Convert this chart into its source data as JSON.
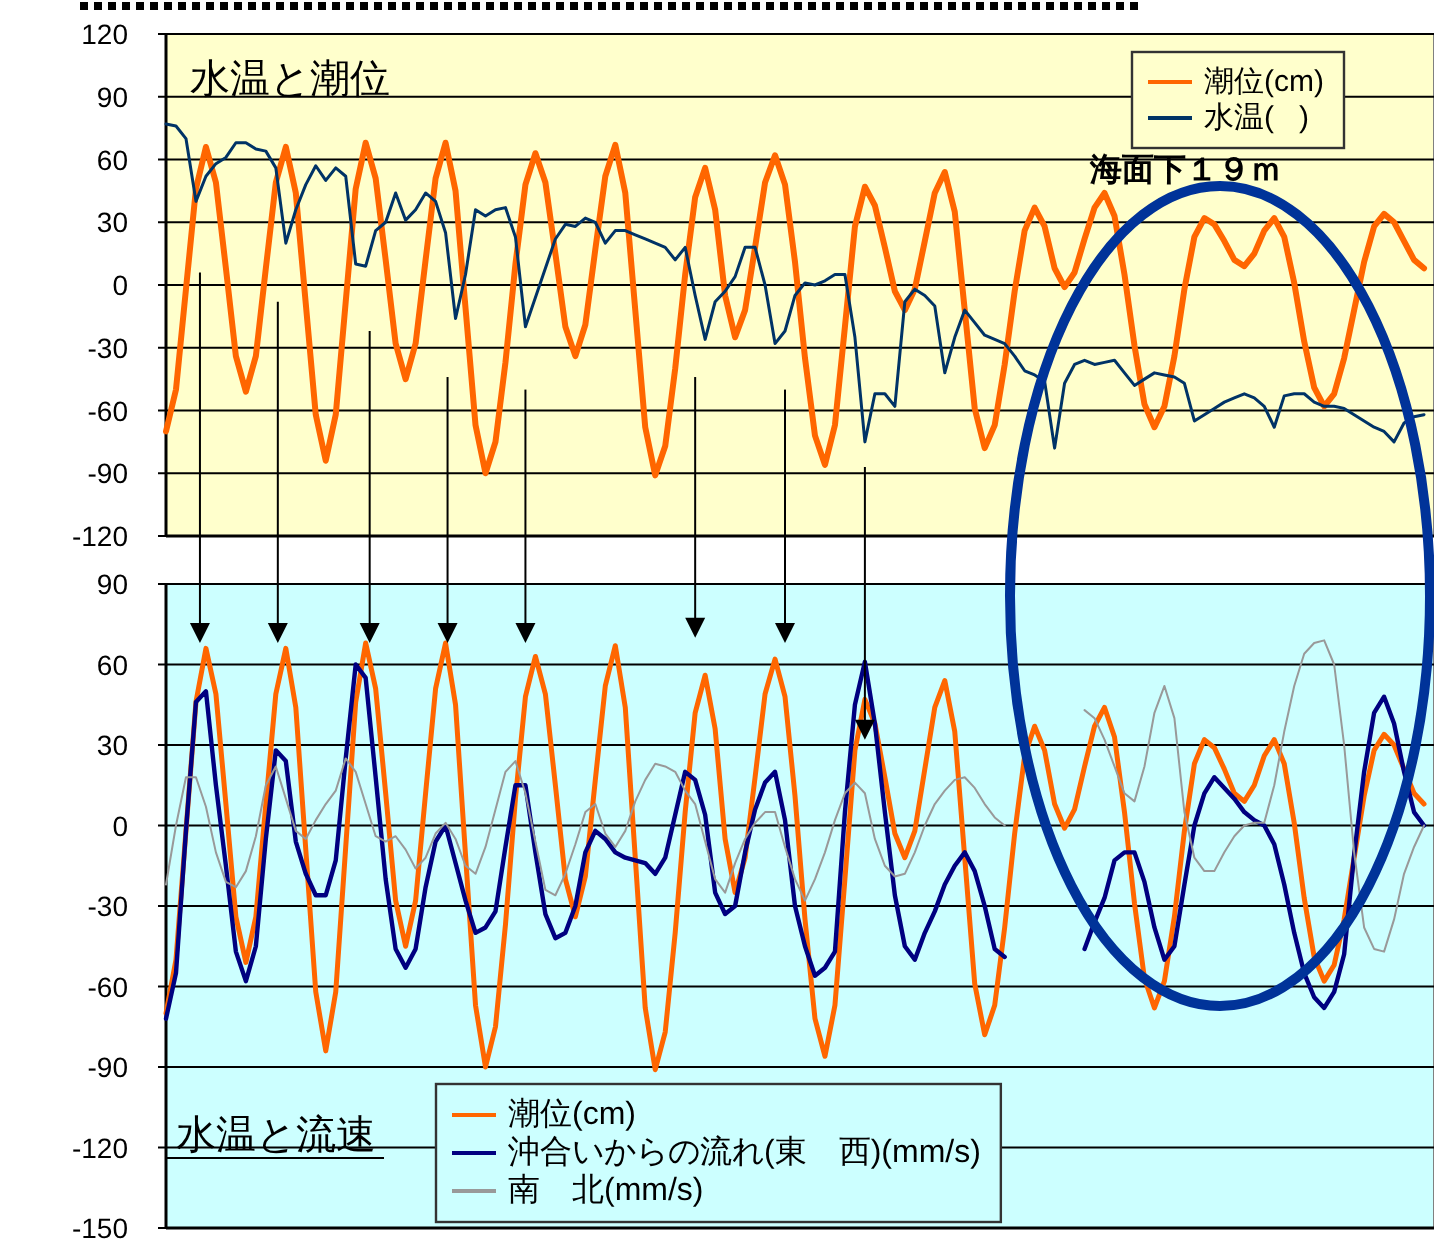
{
  "chart_data": [
    {
      "type": "line",
      "title": "水温と潮位",
      "categories": [
        null,
        null,
        null,
        null,
        null,
        null,
        null,
        null,
        null,
        null,
        null,
        null,
        null,
        null,
        null,
        null,
        null,
        null,
        null,
        null,
        null,
        null,
        null,
        null,
        null,
        null,
        null,
        null,
        null,
        null,
        null,
        null,
        null,
        null,
        null,
        null,
        null,
        null,
        null,
        null,
        null,
        null,
        null,
        null,
        null,
        null,
        null,
        null,
        null,
        null,
        null,
        null,
        null,
        null,
        null,
        null,
        null,
        null,
        null,
        null,
        null,
        null,
        null,
        null,
        null,
        null,
        null,
        null,
        null,
        null,
        null,
        null,
        null,
        null,
        null,
        null,
        null,
        null,
        null,
        null,
        null,
        null,
        null,
        null,
        null,
        null,
        null,
        null,
        null,
        null,
        null,
        null,
        null,
        null,
        null,
        null,
        null,
        null,
        null,
        null,
        null,
        null,
        null,
        null,
        null,
        null,
        null,
        null,
        null,
        null,
        null,
        null,
        null,
        null,
        null,
        null,
        null,
        null,
        null,
        null,
        null,
        null,
        null,
        null,
        null,
        null,
        null
      ],
      "ylim": [
        -120,
        120
      ],
      "yticks": [
        -120,
        -90,
        -60,
        -30,
        0,
        30,
        60,
        90,
        120
      ],
      "grid": "y",
      "legend": "top right",
      "tick_labels": "y",
      "series": [
        {
          "name": "潮位(cm)",
          "color": "#ff6600",
          "values": [
            -70,
            -50,
            -2,
            46,
            66,
            49,
            8,
            -34,
            -51,
            -34,
            8,
            49,
            66,
            44,
            -9,
            -62,
            -84,
            -62,
            -8,
            46,
            68,
            51,
            12,
            -28,
            -45,
            -28,
            12,
            51,
            68,
            45,
            -11,
            -67,
            -90,
            -75,
            -37,
            10,
            48,
            63,
            49,
            15,
            -20,
            -34,
            -19,
            17,
            52,
            67,
            44,
            -12,
            -68,
            -91,
            -77,
            -40,
            5,
            42,
            56,
            36,
            -5,
            -25,
            -12,
            18,
            49,
            62,
            48,
            11,
            -35,
            -72,
            -86,
            -67,
            -20,
            28,
            47,
            38,
            18,
            -3,
            -12,
            -2,
            21,
            44,
            54,
            35,
            -12,
            -59,
            -78,
            -67,
            -38,
            -3,
            26,
            37,
            28,
            8,
            -1,
            6,
            22,
            37,
            44,
            33,
            5,
            -29,
            -57,
            -68,
            -58,
            -34,
            -2,
            23,
            32,
            29,
            21,
            12,
            9,
            15,
            26,
            32,
            23,
            1,
            -27,
            -49,
            -58,
            -52,
            -35,
            -12,
            11,
            28,
            34,
            30,
            21,
            12,
            8
          ]
        },
        {
          "name": "水温(   )",
          "color": "#003366",
          "values": [
            77,
            76,
            70,
            40,
            52,
            58,
            61,
            68,
            68,
            65,
            64,
            56,
            20,
            36,
            48,
            57,
            50,
            56,
            52,
            10,
            9,
            26,
            30,
            44,
            31,
            36,
            44,
            40,
            25,
            -16,
            5,
            36,
            33,
            36,
            37,
            23,
            -20,
            -6,
            8,
            22,
            29,
            28,
            32,
            30,
            20,
            26,
            26,
            24,
            22,
            20,
            18,
            12,
            18,
            -5,
            -26,
            -8,
            -3,
            4,
            18,
            18,
            0,
            -28,
            -22,
            -5,
            1,
            0,
            2,
            5,
            5,
            -25,
            -75,
            -52,
            -52,
            -58,
            -8,
            -2,
            -5,
            -10,
            -42,
            -25,
            -12,
            -18,
            -24,
            -26,
            -28,
            -34,
            -41,
            -43,
            -46,
            -78,
            -47,
            -38,
            -36,
            -38,
            -37,
            -36,
            -42,
            -48,
            -45,
            -42,
            -43,
            -44,
            -47,
            -65,
            -62,
            -59,
            -56,
            -54,
            -52,
            -54,
            -58,
            -68,
            -53,
            -52,
            -52,
            -56,
            -58,
            -58,
            -59,
            -62,
            -65,
            -68,
            -70,
            -75,
            -66,
            -63,
            -62
          ]
        }
      ],
      "annotations": [
        "海面下１９ｍ"
      ]
    },
    {
      "type": "line",
      "title": "水温と流速",
      "categories": [
        null,
        null,
        null,
        null,
        null,
        null,
        null,
        null,
        null,
        null,
        null,
        null,
        null,
        null,
        null,
        null,
        null,
        null,
        null,
        null,
        null,
        null,
        null,
        null,
        null,
        null,
        null,
        null,
        null,
        null,
        null,
        null,
        null,
        null,
        null,
        null,
        null,
        null,
        null,
        null,
        null,
        null,
        null,
        null,
        null,
        null,
        null,
        null,
        null,
        null,
        null,
        null,
        null,
        null,
        null,
        null,
        null,
        null,
        null,
        null,
        null,
        null,
        null,
        null,
        null,
        null,
        null,
        null,
        null,
        null,
        null,
        null,
        null,
        null,
        null,
        null,
        null,
        null,
        null,
        null,
        null,
        null,
        null,
        null,
        null,
        null,
        null,
        null,
        null,
        null,
        null,
        null,
        null,
        null,
        null,
        null,
        null,
        null,
        null,
        null,
        null,
        null,
        null,
        null,
        null,
        null,
        null,
        null,
        null,
        null,
        null,
        null,
        null,
        null,
        null,
        null,
        null,
        null,
        null,
        null,
        null,
        null,
        null,
        null,
        null,
        null,
        null
      ],
      "ylim": [
        -150,
        90
      ],
      "yticks": [
        -150,
        -120,
        -90,
        -60,
        -30,
        0,
        30,
        60,
        90
      ],
      "grid": "y",
      "legend": "bottom",
      "tick_labels": "y",
      "series": [
        {
          "name": "潮位(cm)",
          "color": "#ff6600",
          "values": [
            -70,
            -50,
            -2,
            46,
            66,
            49,
            8,
            -34,
            -51,
            -34,
            8,
            49,
            66,
            44,
            -9,
            -62,
            -84,
            -62,
            -8,
            46,
            68,
            51,
            12,
            -28,
            -45,
            -28,
            12,
            51,
            68,
            45,
            -11,
            -67,
            -90,
            -75,
            -37,
            10,
            48,
            63,
            49,
            15,
            -20,
            -34,
            -19,
            17,
            52,
            67,
            44,
            -12,
            -68,
            -91,
            -77,
            -40,
            5,
            42,
            56,
            36,
            -5,
            -25,
            -12,
            18,
            49,
            62,
            48,
            11,
            -35,
            -72,
            -86,
            -67,
            -20,
            28,
            47,
            38,
            18,
            -3,
            -12,
            -2,
            21,
            44,
            54,
            35,
            -12,
            -59,
            -78,
            -67,
            -38,
            -3,
            26,
            37,
            28,
            8,
            -1,
            6,
            22,
            37,
            44,
            33,
            5,
            -29,
            -57,
            -68,
            -58,
            -34,
            -2,
            23,
            32,
            29,
            21,
            12,
            9,
            15,
            26,
            32,
            23,
            1,
            -27,
            -49,
            -58,
            -52,
            -35,
            -12,
            11,
            28,
            34,
            30,
            21,
            12,
            8
          ]
        },
        {
          "name": "沖合いからの流れ(東　西)(mm/s)",
          "color": "#000080",
          "values": [
            -72,
            -55,
            -2,
            46,
            50,
            15,
            -15,
            -47,
            -58,
            -45,
            -5,
            28,
            24,
            -6,
            -18,
            -26,
            -26,
            -13,
            25,
            60,
            55,
            18,
            -20,
            -46,
            -53,
            -46,
            -23,
            -6,
            0,
            -14,
            -28,
            -40,
            -38,
            -32,
            -8,
            15,
            15,
            -10,
            -33,
            -42,
            -40,
            -30,
            -10,
            -2,
            -5,
            -10,
            -12,
            -13,
            -14,
            -18,
            -12,
            4,
            20,
            17,
            4,
            -25,
            -33,
            -30,
            -10,
            6,
            16,
            20,
            2,
            -30,
            -45,
            -56,
            -53,
            -47,
            5,
            45,
            61,
            38,
            5,
            -26,
            -45,
            -50,
            -40,
            -32,
            -22,
            -15,
            -10,
            -17,
            -30,
            -46,
            -49,
            null,
            null,
            null,
            null,
            null,
            null,
            null,
            -46,
            -36,
            -27,
            -13,
            -10,
            -10,
            -21,
            -38,
            -50,
            -45,
            -22,
            0,
            12,
            18,
            14,
            10,
            5,
            2,
            0,
            -7,
            -22,
            -40,
            -55,
            -64,
            -68,
            -62,
            -48,
            -11,
            20,
            42,
            48,
            38,
            20,
            5,
            0
          ]
        },
        {
          "name": "南　北(mm/s)",
          "color": "#999999",
          "values": [
            -22,
            0,
            18,
            18,
            7,
            -10,
            -21,
            -23,
            -17,
            -4,
            15,
            22,
            10,
            -2,
            -5,
            2,
            8,
            13,
            25,
            20,
            8,
            -4,
            -6,
            -4,
            -9,
            -16,
            -12,
            -3,
            1,
            -5,
            -15,
            -18,
            -8,
            6,
            20,
            24,
            12,
            -6,
            -24,
            -26,
            -18,
            -7,
            5,
            8,
            -3,
            -8,
            -2,
            9,
            17,
            23,
            22,
            20,
            13,
            8,
            -6,
            -20,
            -25,
            -14,
            -5,
            1,
            5,
            5,
            -8,
            -20,
            -28,
            -20,
            -10,
            2,
            12,
            16,
            12,
            -5,
            -15,
            -19,
            -18,
            -10,
            0,
            8,
            13,
            17,
            18,
            14,
            8,
            3,
            0,
            null,
            null,
            null,
            null,
            null,
            null,
            null,
            43,
            40,
            32,
            22,
            12,
            9,
            22,
            42,
            52,
            40,
            5,
            -12,
            -17,
            -17,
            -10,
            -4,
            0,
            1,
            1,
            15,
            35,
            52,
            64,
            68,
            69,
            60,
            30,
            -10,
            -38,
            -46,
            -47,
            -35,
            -18,
            -8,
            0
          ]
        }
      ]
    }
  ]
}
